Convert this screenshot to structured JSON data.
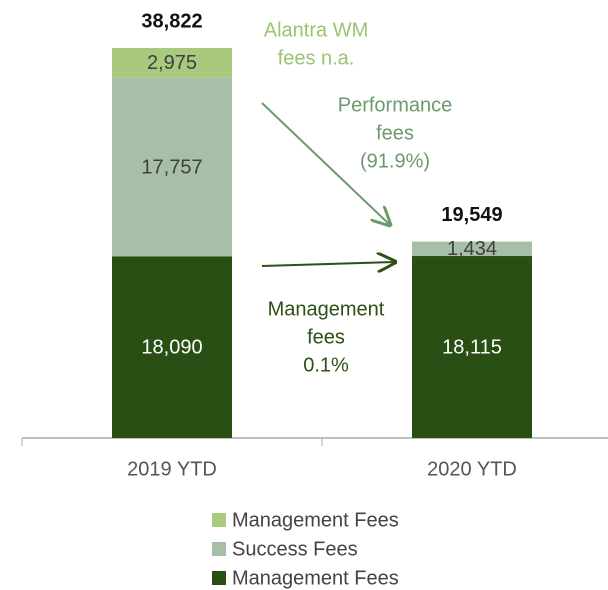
{
  "chart_data": {
    "type": "stacked-bar",
    "categories": [
      "2019 YTD",
      "2020 YTD"
    ],
    "series": [
      {
        "name": "Management Fees",
        "color": "#2a4f14",
        "values": [
          18090,
          18115
        ],
        "value_labels": [
          "18,090",
          "18,115"
        ],
        "label_color": "#ffffff"
      },
      {
        "name": "Success Fees",
        "color": "#a7bfa6",
        "values": [
          17757,
          1434
        ],
        "value_labels": [
          "17,757",
          "1,434"
        ],
        "label_color": "#404040"
      },
      {
        "name": "Management Fees",
        "color": "#a9c97f",
        "values": [
          2975,
          null
        ],
        "value_labels": [
          "2,975",
          null
        ],
        "label_color": "#404040"
      }
    ],
    "totals": [
      38822,
      19549
    ],
    "total_labels": [
      "38,822",
      "19,549"
    ],
    "annotations": [
      {
        "lines": [
          "Alantra WM",
          "fees n.a."
        ],
        "color": "#9cc370"
      },
      {
        "lines": [
          "Performance",
          "fees",
          "(91.9%)"
        ],
        "color": "#6a9a6e"
      },
      {
        "lines": [
          "Management",
          "fees",
          "0.1%"
        ],
        "color": "#2d5016"
      }
    ]
  }
}
